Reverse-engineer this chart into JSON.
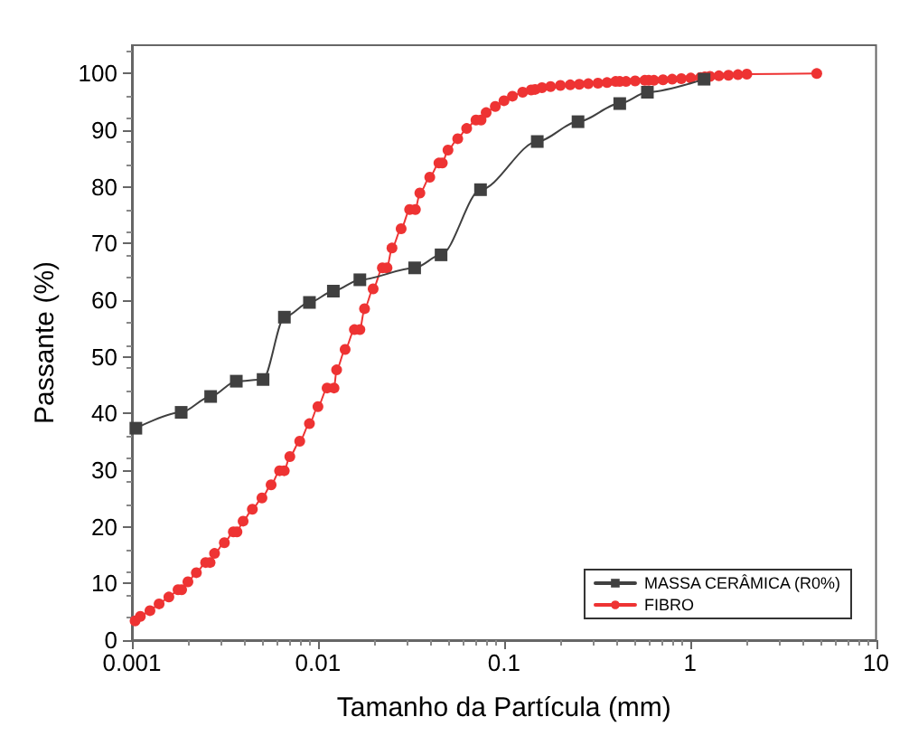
{
  "chart_data": {
    "type": "line",
    "xlabel": "Tamanho da Partícula (mm)",
    "ylabel": "Passante (%)",
    "log": "x",
    "xlim": [
      0.001,
      10
    ],
    "xticks": [
      0.001,
      0.01,
      0.1,
      1,
      10
    ],
    "ylim": [
      0,
      105
    ],
    "yticks": [
      0,
      10,
      20,
      30,
      40,
      50,
      60,
      70,
      80,
      90,
      100
    ],
    "grid": false,
    "legend": "bottom right",
    "line_style": "solid",
    "series": [
      {
        "name": "MASSA CERÂMICA (R0%)",
        "color": "#404040",
        "marker": "square",
        "x": [
          0.00105,
          0.00184,
          0.00265,
          0.00364,
          0.00507,
          0.0066,
          0.009,
          0.0121,
          0.0168,
          0.0331,
          0.0459,
          0.0748,
          0.151,
          0.25,
          0.419,
          0.59,
          1.19
        ],
        "values": [
          37.4,
          40.2,
          43,
          45.7,
          46,
          57,
          59.6,
          61.6,
          63.6,
          65.7,
          68,
          79.5,
          88,
          91.5,
          94.7,
          96.7,
          99
        ]
      },
      {
        "name": "FIBRO",
        "color": "#ee3333",
        "marker": "circle",
        "x": [
          0.00104,
          0.00111,
          0.00125,
          0.0014,
          0.00158,
          0.00177,
          0.00185,
          0.002,
          0.00222,
          0.00249,
          0.00263,
          0.00278,
          0.00314,
          0.00351,
          0.00367,
          0.00396,
          0.00444,
          0.005,
          0.0056,
          0.00622,
          0.00659,
          0.00706,
          0.00798,
          0.009,
          0.01,
          0.0112,
          0.0122,
          0.0126,
          0.014,
          0.0157,
          0.0168,
          0.0178,
          0.0198,
          0.0222,
          0.0235,
          0.025,
          0.028,
          0.0311,
          0.0334,
          0.0353,
          0.0399,
          0.0447,
          0.0466,
          0.05,
          0.0564,
          0.063,
          0.0707,
          0.0753,
          0.0802,
          0.0898,
          0.1,
          0.111,
          0.126,
          0.14,
          0.147,
          0.16,
          0.178,
          0.201,
          0.227,
          0.254,
          0.284,
          0.32,
          0.358,
          0.398,
          0.419,
          0.453,
          0.507,
          0.571,
          0.6,
          0.64,
          0.716,
          0.802,
          0.898,
          1.01,
          1.14,
          1.2,
          1.28,
          1.43,
          1.61,
          1.81,
          2.02,
          4.8
        ],
        "values": [
          3.4,
          4.2,
          5.2,
          6.4,
          7.6,
          8.9,
          8.9,
          10.3,
          11.9,
          13.7,
          13.7,
          15.3,
          17.2,
          19.1,
          19.1,
          21,
          23.1,
          25.1,
          27.4,
          29.9,
          29.9,
          32.4,
          35.1,
          38.2,
          41.2,
          44.5,
          44.5,
          47.7,
          51.3,
          54.8,
          54.8,
          58.5,
          62,
          65.7,
          65.7,
          69.2,
          72.6,
          76,
          76,
          78.9,
          81.7,
          84.2,
          84.2,
          86.5,
          88.5,
          90.3,
          91.8,
          91.8,
          93.1,
          94.2,
          95.2,
          96,
          96.7,
          97.1,
          97.2,
          97.5,
          97.7,
          97.9,
          98,
          98.1,
          98.2,
          98.3,
          98.4,
          98.6,
          98.6,
          98.6,
          98.7,
          98.8,
          98.8,
          98.8,
          98.9,
          99,
          99.1,
          99.2,
          99.3,
          99.4,
          99.5,
          99.6,
          99.7,
          99.8,
          99.9,
          100
        ]
      }
    ]
  }
}
